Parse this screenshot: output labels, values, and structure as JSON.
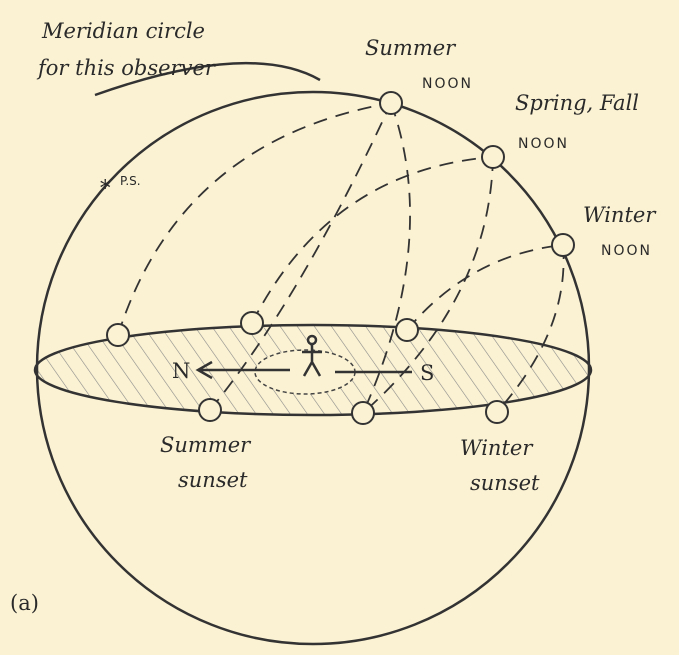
{
  "labels": {
    "meridian": [
      "Meridian circle",
      "for this observer"
    ],
    "summer_noon": [
      "Summer",
      "NOON"
    ],
    "spring_fall_noon": [
      "Spring, Fall",
      "NOON"
    ],
    "winter_noon": [
      "Winter",
      "NOON"
    ],
    "pole_star": "P.S.",
    "north": "N",
    "south": "S",
    "summer_sunset": [
      "Summer",
      "sunset"
    ],
    "winter_sunset": [
      "Winter",
      "sunset"
    ],
    "figure": "(a)"
  }
}
